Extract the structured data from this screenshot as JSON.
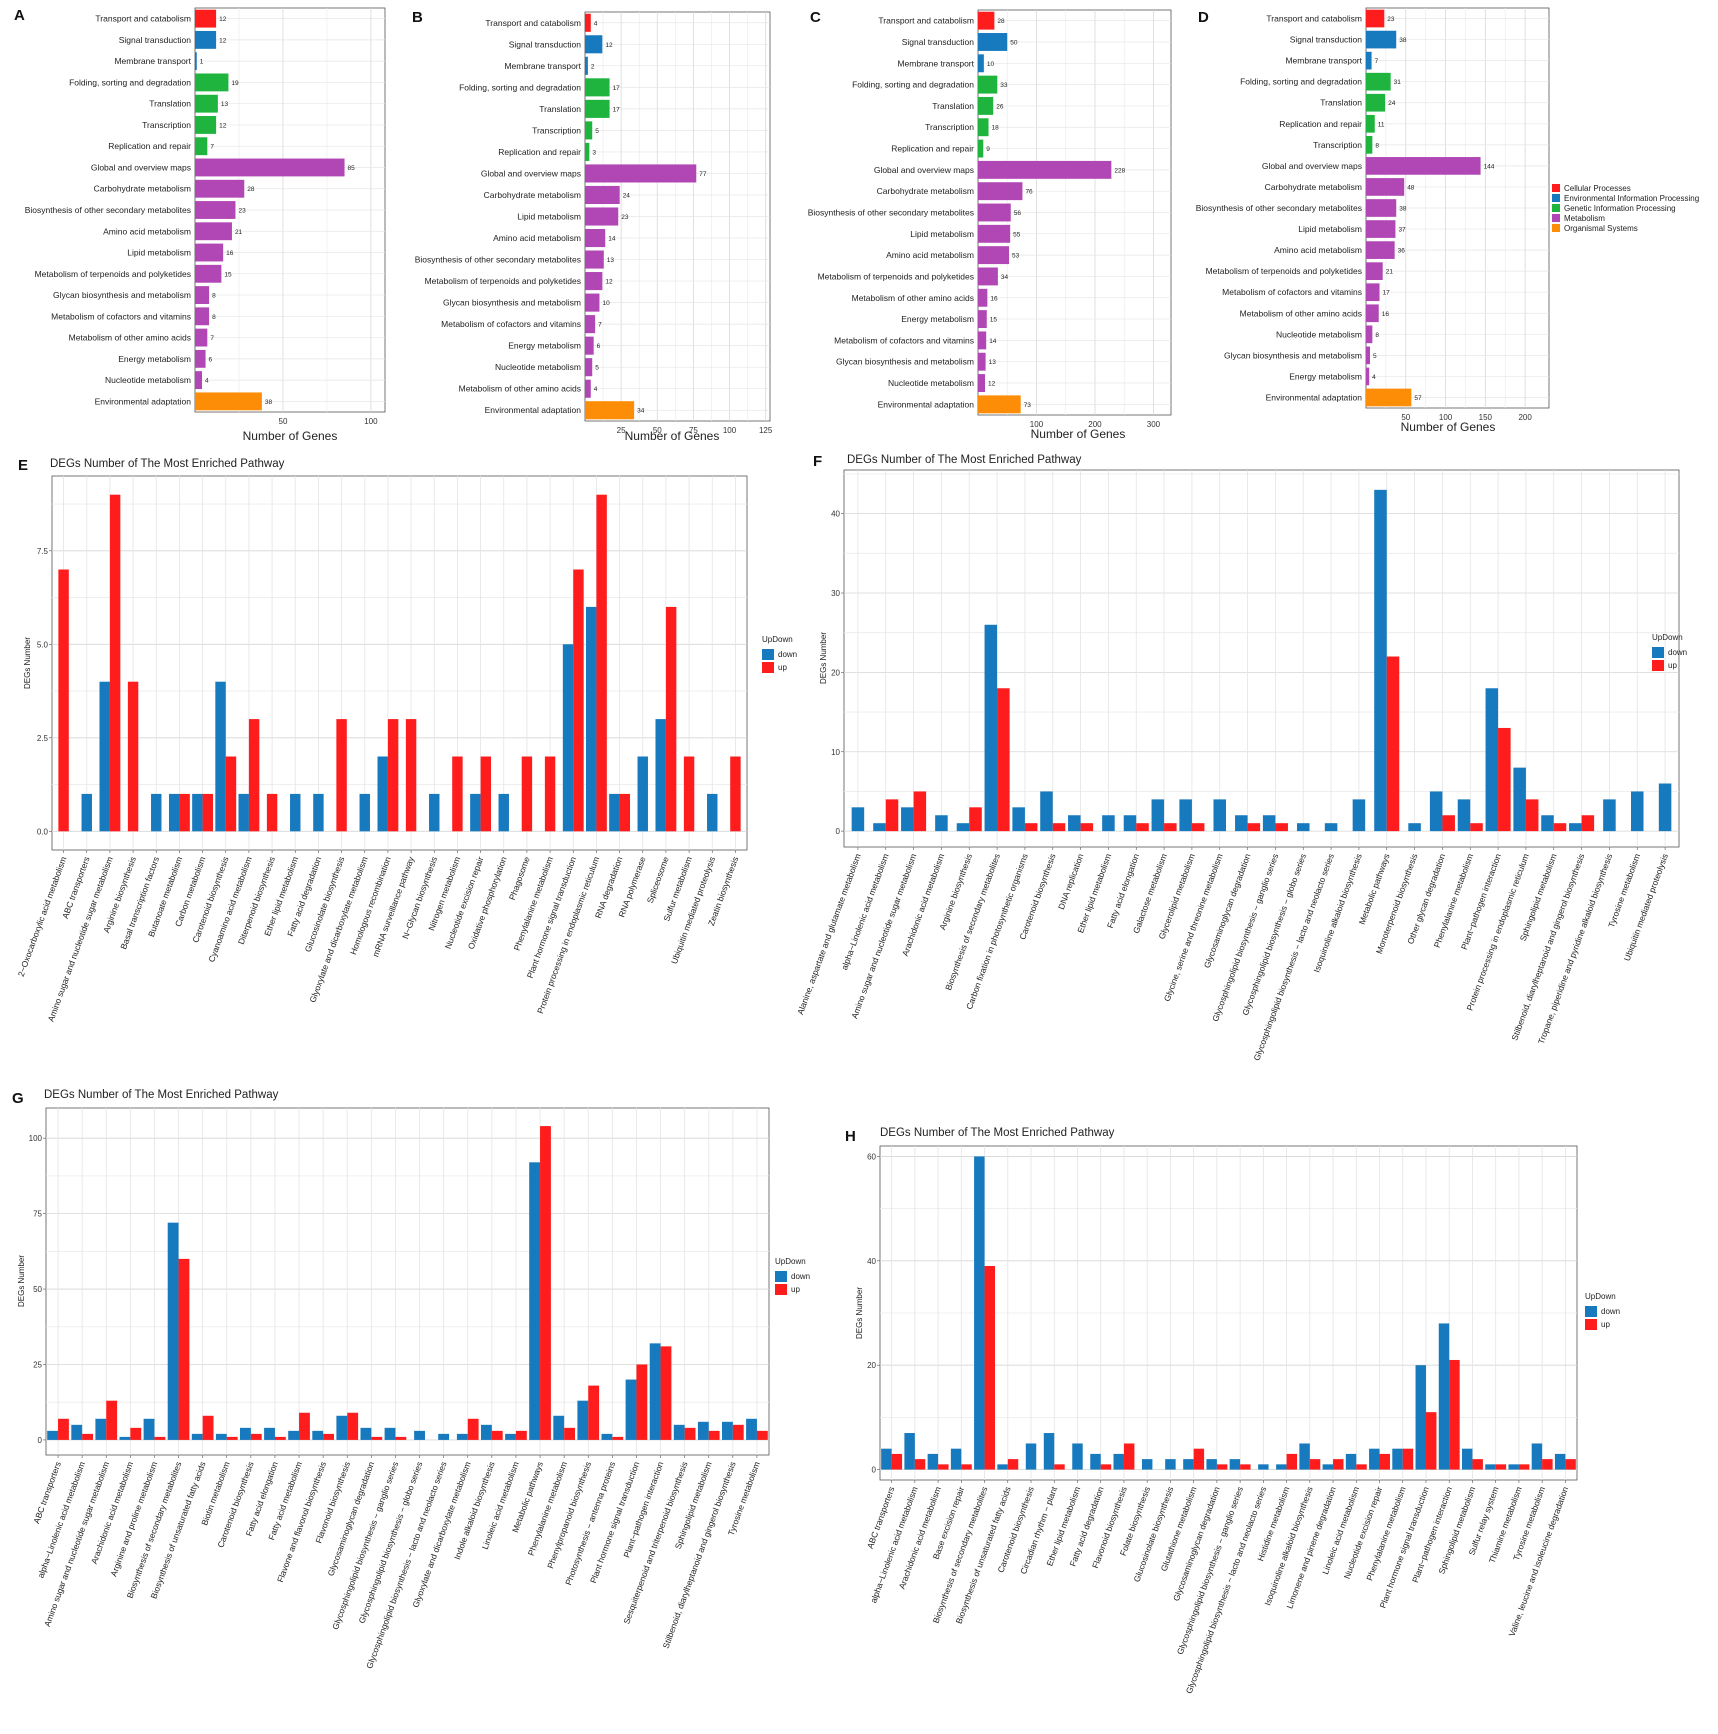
{
  "colors": {
    "Cellular Processes": "#fe1c1c",
    "Environmental Information Processing": "#1779be",
    "Genetic Information Processing": "#1eb43d",
    "Metabolism": "#b047b4",
    "Organismal Systems": "#fd8c07",
    "down": "#1779be",
    "up": "#fe1c1c"
  },
  "legend_kegg": {
    "entries": [
      "Cellular Processes",
      "Environmental Information Processing",
      "Genetic Information Processing",
      "Metabolism",
      "Organismal Systems"
    ]
  },
  "chart_data": [
    {
      "type": "bar",
      "orientation": "horizontal",
      "panel": "A",
      "xlabel": "Number of Genes",
      "xlim": [
        0,
        108
      ],
      "xticks": [
        50,
        100
      ],
      "categories": [
        "Transport and catabolism",
        "Signal transduction",
        "Membrane transport",
        "Folding, sorting and degradation",
        "Translation",
        "Transcription",
        "Replication and repair",
        "Global and overview maps",
        "Carbohydrate metabolism",
        "Biosynthesis of other secondary metabolites",
        "Amino acid metabolism",
        "Lipid metabolism",
        "Metabolism of terpenoids and polyketides",
        "Glycan biosynthesis and metabolism",
        "Metabolism of cofactors and vitamins",
        "Metabolism of other amino acids",
        "Energy metabolism",
        "Nucleotide metabolism",
        "Environmental adaptation"
      ],
      "values": [
        12,
        12,
        1,
        19,
        13,
        12,
        7,
        85,
        28,
        23,
        21,
        16,
        15,
        8,
        8,
        7,
        6,
        4,
        38
      ],
      "groups": [
        "Cellular Processes",
        "Environmental Information Processing",
        "Environmental Information Processing",
        "Genetic Information Processing",
        "Genetic Information Processing",
        "Genetic Information Processing",
        "Genetic Information Processing",
        "Metabolism",
        "Metabolism",
        "Metabolism",
        "Metabolism",
        "Metabolism",
        "Metabolism",
        "Metabolism",
        "Metabolism",
        "Metabolism",
        "Metabolism",
        "Metabolism",
        "Organismal Systems"
      ]
    },
    {
      "type": "bar",
      "orientation": "horizontal",
      "panel": "B",
      "xlabel": "Number of Genes",
      "xlim": [
        0,
        128
      ],
      "xticks": [
        25,
        50,
        75,
        100,
        125
      ],
      "categories": [
        "Transport and catabolism",
        "Signal transduction",
        "Membrane transport",
        "Folding, sorting and degradation",
        "Translation",
        "Transcription",
        "Replication and repair",
        "Global and overview maps",
        "Carbohydrate metabolism",
        "Lipid metabolism",
        "Amino acid metabolism",
        "Biosynthesis of other secondary metabolites",
        "Metabolism of terpenoids and polyketides",
        "Glycan biosynthesis and metabolism",
        "Metabolism of cofactors and vitamins",
        "Energy metabolism",
        "Nucleotide metabolism",
        "Metabolism of other amino acids",
        "Environmental adaptation"
      ],
      "values": [
        4,
        12,
        2,
        17,
        17,
        5,
        3,
        77,
        24,
        23,
        14,
        13,
        12,
        10,
        7,
        6,
        5,
        4,
        34
      ],
      "groups": [
        "Cellular Processes",
        "Environmental Information Processing",
        "Environmental Information Processing",
        "Genetic Information Processing",
        "Genetic Information Processing",
        "Genetic Information Processing",
        "Genetic Information Processing",
        "Metabolism",
        "Metabolism",
        "Metabolism",
        "Metabolism",
        "Metabolism",
        "Metabolism",
        "Metabolism",
        "Metabolism",
        "Metabolism",
        "Metabolism",
        "Metabolism",
        "Organismal Systems"
      ]
    },
    {
      "type": "bar",
      "orientation": "horizontal",
      "panel": "C",
      "xlabel": "Number of Genes",
      "xlim": [
        0,
        330
      ],
      "xticks": [
        100,
        200,
        300
      ],
      "categories": [
        "Transport and catabolism",
        "Signal transduction",
        "Membrane transport",
        "Folding, sorting and degradation",
        "Translation",
        "Transcription",
        "Replication and repair",
        "Global and overview maps",
        "Carbohydrate metabolism",
        "Biosynthesis of other secondary metabolites",
        "Lipid metabolism",
        "Amino acid metabolism",
        "Metabolism of terpenoids and polyketides",
        "Metabolism of other amino acids",
        "Energy metabolism",
        "Metabolism of cofactors and vitamins",
        "Glycan biosynthesis and metabolism",
        "Nucleotide metabolism",
        "Environmental adaptation"
      ],
      "values": [
        28,
        50,
        10,
        33,
        26,
        18,
        9,
        228,
        76,
        56,
        55,
        53,
        34,
        16,
        15,
        14,
        13,
        12,
        73
      ],
      "groups": [
        "Cellular Processes",
        "Environmental Information Processing",
        "Environmental Information Processing",
        "Genetic Information Processing",
        "Genetic Information Processing",
        "Genetic Information Processing",
        "Genetic Information Processing",
        "Metabolism",
        "Metabolism",
        "Metabolism",
        "Metabolism",
        "Metabolism",
        "Metabolism",
        "Metabolism",
        "Metabolism",
        "Metabolism",
        "Metabolism",
        "Metabolism",
        "Organismal Systems"
      ]
    },
    {
      "type": "bar",
      "orientation": "horizontal",
      "panel": "D",
      "xlabel": "Number of Genes",
      "xlim": [
        0,
        230
      ],
      "xticks": [
        50,
        100,
        150,
        200
      ],
      "categories": [
        "Transport and catabolism",
        "Signal transduction",
        "Membrane transport",
        "Folding, sorting and degradation",
        "Translation",
        "Replication and repair",
        "Transcription",
        "Global and overview maps",
        "Carbohydrate metabolism",
        "Biosynthesis of other secondary metabolites",
        "Lipid metabolism",
        "Amino acid metabolism",
        "Metabolism of terpenoids and polyketides",
        "Metabolism of cofactors and vitamins",
        "Metabolism of other amino acids",
        "Nucleotide metabolism",
        "Glycan biosynthesis and metabolism",
        "Energy metabolism",
        "Environmental adaptation"
      ],
      "values": [
        23,
        38,
        7,
        31,
        24,
        11,
        8,
        144,
        48,
        38,
        37,
        36,
        21,
        17,
        16,
        8,
        5,
        4,
        57
      ],
      "groups": [
        "Cellular Processes",
        "Environmental Information Processing",
        "Environmental Information Processing",
        "Genetic Information Processing",
        "Genetic Information Processing",
        "Genetic Information Processing",
        "Genetic Information Processing",
        "Metabolism",
        "Metabolism",
        "Metabolism",
        "Metabolism",
        "Metabolism",
        "Metabolism",
        "Metabolism",
        "Metabolism",
        "Metabolism",
        "Metabolism",
        "Metabolism",
        "Organismal Systems"
      ]
    },
    {
      "type": "bar",
      "orientation": "vertical",
      "panel": "E",
      "title": "DEGs Number of The Most Enriched Pathway",
      "ylabel": "DEGs Number",
      "ylim": [
        -0.5,
        9.5
      ],
      "yticks": [
        0,
        2.5,
        5,
        7.5
      ],
      "ytick_labels": [
        "0.0",
        "2.5",
        "5.0",
        "7.5"
      ],
      "legend": {
        "title": "UpDown",
        "entries": [
          "down",
          "up"
        ]
      },
      "categories": [
        "2−Oxocarboxylic acid metabolism",
        "ABC transporters",
        "Amino sugar and nucleotide sugar metabolism",
        "Arginine biosynthesis",
        "Basal transcription factors",
        "Butanoate metabolism",
        "Carbon metabolism",
        "Carotenoid biosynthesis",
        "Cyanoamino acid metabolism",
        "Diterpenoid biosynthesis",
        "Ether lipid metabolism",
        "Fatty acid degradation",
        "Glucosinolate biosynthesis",
        "Glyoxylate and dicarboxylate metabolism",
        "Homologous recombination",
        "mRNA surveillance pathway",
        "N−Glycan biosynthesis",
        "Nitrogen metabolism",
        "Nucleotide excision repair",
        "Oxidative phosphorylation",
        "Phagosome",
        "Phenylalanine metabolism",
        "Plant hormone signal transduction",
        "Protein processing in endoplasmic reticulum",
        "RNA degradation",
        "RNA polymerase",
        "Spliceosome",
        "Sulfur metabolism",
        "Ubiquitin mediated proteolysis",
        "Zeatin biosynthesis"
      ],
      "series": [
        {
          "name": "down",
          "values": [
            null,
            1,
            4,
            null,
            1,
            1,
            1,
            4,
            1,
            null,
            1,
            1,
            null,
            1,
            2,
            null,
            1,
            null,
            1,
            1,
            null,
            null,
            5,
            6,
            1,
            2,
            3,
            null,
            1,
            null
          ]
        },
        {
          "name": "up",
          "values": [
            7,
            null,
            9,
            4,
            null,
            1,
            1,
            2,
            3,
            1,
            null,
            null,
            3,
            null,
            3,
            3,
            null,
            2,
            2,
            null,
            2,
            2,
            7,
            9,
            1,
            null,
            6,
            2,
            null,
            2
          ]
        }
      ]
    },
    {
      "type": "bar",
      "orientation": "vertical",
      "panel": "F",
      "title": "DEGs Number of The Most Enriched Pathway",
      "ylabel": "DEGs Number",
      "ylim": [
        -2,
        45.5
      ],
      "yticks": [
        0,
        10,
        20,
        30,
        40
      ],
      "ytick_labels": [
        "0",
        "10",
        "20",
        "30",
        "40"
      ],
      "legend": {
        "title": "UpDown",
        "entries": [
          "down",
          "up"
        ]
      },
      "categories": [
        "Alanine, aspartate and glutamate metabolism",
        "alpha−Linolenic acid metabolism",
        "Amino sugar and nucleotide sugar metabolism",
        "Arachidonic acid metabolism",
        "Arginine biosynthesis",
        "Biosynthesis of secondary metabolites",
        "Carbon fixation in photosynthetic organisms",
        "Carotenoid biosynthesis",
        "DNA replication",
        "Ether lipid metabolism",
        "Fatty acid elongation",
        "Galactose metabolism",
        "Glycerolipid metabolism",
        "Glycine, serine and threonine metabolism",
        "Glycosaminoglycan degradation",
        "Glycosphingolipid biosynthesis − ganglio series",
        "Glycosphingolipid biosynthesis − globo series",
        "Glycosphingolipid biosynthesis − lacto and neolacto series",
        "Isoquinoline alkaloid biosynthesis",
        "Metabolic pathways",
        "Monoterpenoid biosynthesis",
        "Other glycan degradation",
        "Phenylalanine metabolism",
        "Plant−pathogen interaction",
        "Protein processing in endoplasmic reticulum",
        "Sphingolipid metabolism",
        "Stilbenoid, diarylheptanoid and gingerol biosynthesis",
        "Tropane, piperidine and pyridine alkaloid biosynthesis",
        "Tyrosine metabolism",
        "Ubiquitin mediated proteolysis"
      ],
      "series": [
        {
          "name": "down",
          "values": [
            3,
            1,
            3,
            2,
            1,
            26,
            3,
            5,
            2,
            2,
            2,
            4,
            4,
            4,
            2,
            2,
            1,
            1,
            4,
            43,
            1,
            5,
            4,
            18,
            8,
            2,
            1,
            4,
            5,
            6
          ]
        },
        {
          "name": "up",
          "values": [
            null,
            4,
            5,
            null,
            3,
            18,
            1,
            1,
            1,
            null,
            1,
            1,
            1,
            null,
            1,
            1,
            null,
            null,
            null,
            22,
            null,
            2,
            1,
            13,
            4,
            1,
            2,
            null,
            null,
            null
          ]
        }
      ]
    },
    {
      "type": "bar",
      "orientation": "vertical",
      "panel": "G",
      "title": "DEGs Number of The Most Enriched Pathway",
      "ylabel": "DEGs Number",
      "ylim": [
        -5,
        110
      ],
      "yticks": [
        0,
        25,
        50,
        75,
        100
      ],
      "ytick_labels": [
        "0",
        "25",
        "50",
        "75",
        "100"
      ],
      "legend": {
        "title": "UpDown",
        "entries": [
          "down",
          "up"
        ]
      },
      "categories": [
        "ABC transporters",
        "alpha−Linolenic acid metabolism",
        "Amino sugar and nucleotide sugar metabolism",
        "Arachidonic acid metabolism",
        "Arginine and proline metabolism",
        "Biosynthesis of secondary metabolites",
        "Biosynthesis of unsaturated fatty acids",
        "Biotin metabolism",
        "Carotenoid biosynthesis",
        "Fatty acid elongation",
        "Fatty acid metabolism",
        "Flavone and flavonol biosynthesis",
        "Flavonoid biosynthesis",
        "Glycosaminoglycan degradation",
        "Glycosphingolipid biosynthesis − ganglio series",
        "Glycosphingolipid biosynthesis − globo series",
        "Glycosphingolipid biosynthesis − lacto and neolacto series",
        "Glyoxylate and dicarboxylate metabolism",
        "Indole alkaloid biosynthesis",
        "Linoleic acid metabolism",
        "Metabolic pathways",
        "Phenylalanine metabolism",
        "Phenylpropanoid biosynthesis",
        "Photosynthesis − antenna proteins",
        "Plant hormone signal transduction",
        "Plant−pathogen interaction",
        "Sesquiterpenoid and triterpenoid biosynthesis",
        "Sphingolipid metabolism",
        "Stilbenoid, diarylheptanoid and gingerol biosynthesis",
        "Tyrosine metabolism"
      ],
      "series": [
        {
          "name": "down",
          "values": [
            3,
            5,
            7,
            1,
            7,
            72,
            2,
            2,
            4,
            4,
            3,
            3,
            8,
            4,
            4,
            3,
            2,
            2,
            5,
            2,
            92,
            8,
            13,
            2,
            20,
            32,
            5,
            6,
            6,
            7
          ]
        },
        {
          "name": "up",
          "values": [
            7,
            2,
            13,
            4,
            1,
            60,
            8,
            1,
            2,
            1,
            9,
            2,
            9,
            1,
            1,
            null,
            null,
            7,
            3,
            3,
            104,
            4,
            18,
            1,
            25,
            31,
            4,
            3,
            5,
            3
          ]
        }
      ]
    },
    {
      "type": "bar",
      "orientation": "vertical",
      "panel": "H",
      "title": "DEGs Number of The Most Enriched Pathway",
      "ylabel": "DEGs Number",
      "ylim": [
        -2,
        62
      ],
      "yticks": [
        0,
        20,
        40,
        60
      ],
      "ytick_labels": [
        "0",
        "20",
        "40",
        "60"
      ],
      "legend": {
        "title": "UpDown",
        "entries": [
          "down",
          "up"
        ]
      },
      "categories": [
        "ABC transporters",
        "alpha−Linolenic acid metabolism",
        "Arachidonic acid metabolism",
        "Base excision repair",
        "Biosynthesis of secondary metabolites",
        "Biosynthesis of unsaturated fatty acids",
        "Carotenoid biosynthesis",
        "Circadian rhythm − plant",
        "Ether lipid metabolism",
        "Fatty acid degradation",
        "Flavonoid biosynthesis",
        "Folate biosynthesis",
        "Glucosinolate biosynthesis",
        "Glutathione metabolism",
        "Glycosaminoglycan degradation",
        "Glycosphingolipid biosynthesis − ganglio series",
        "Glycosphingolipid biosynthesis − lacto and neolacto series",
        "Histidine metabolism",
        "Isoquinoline alkaloid biosynthesis",
        "Limonene and pinene degradation",
        "Linoleic acid metabolism",
        "Nucleotide excision repair",
        "Phenylalanine metabolism",
        "Plant hormone signal transduction",
        "Plant−pathogen interaction",
        "Sphingolipid metabolism",
        "Sulfur relay system",
        "Thiamine metabolism",
        "Tyrosine metabolism",
        "Valine, leucine and isoleucine degradation"
      ],
      "series": [
        {
          "name": "down",
          "values": [
            4,
            7,
            3,
            4,
            60,
            1,
            5,
            7,
            5,
            3,
            3,
            2,
            2,
            2,
            2,
            2,
            1,
            1,
            5,
            1,
            3,
            4,
            4,
            20,
            28,
            4,
            1,
            1,
            5,
            3
          ]
        },
        {
          "name": "up",
          "values": [
            3,
            2,
            1,
            1,
            39,
            2,
            null,
            1,
            null,
            1,
            5,
            null,
            null,
            4,
            1,
            1,
            null,
            3,
            2,
            2,
            1,
            3,
            4,
            11,
            21,
            2,
            1,
            1,
            2,
            2
          ]
        }
      ]
    }
  ]
}
